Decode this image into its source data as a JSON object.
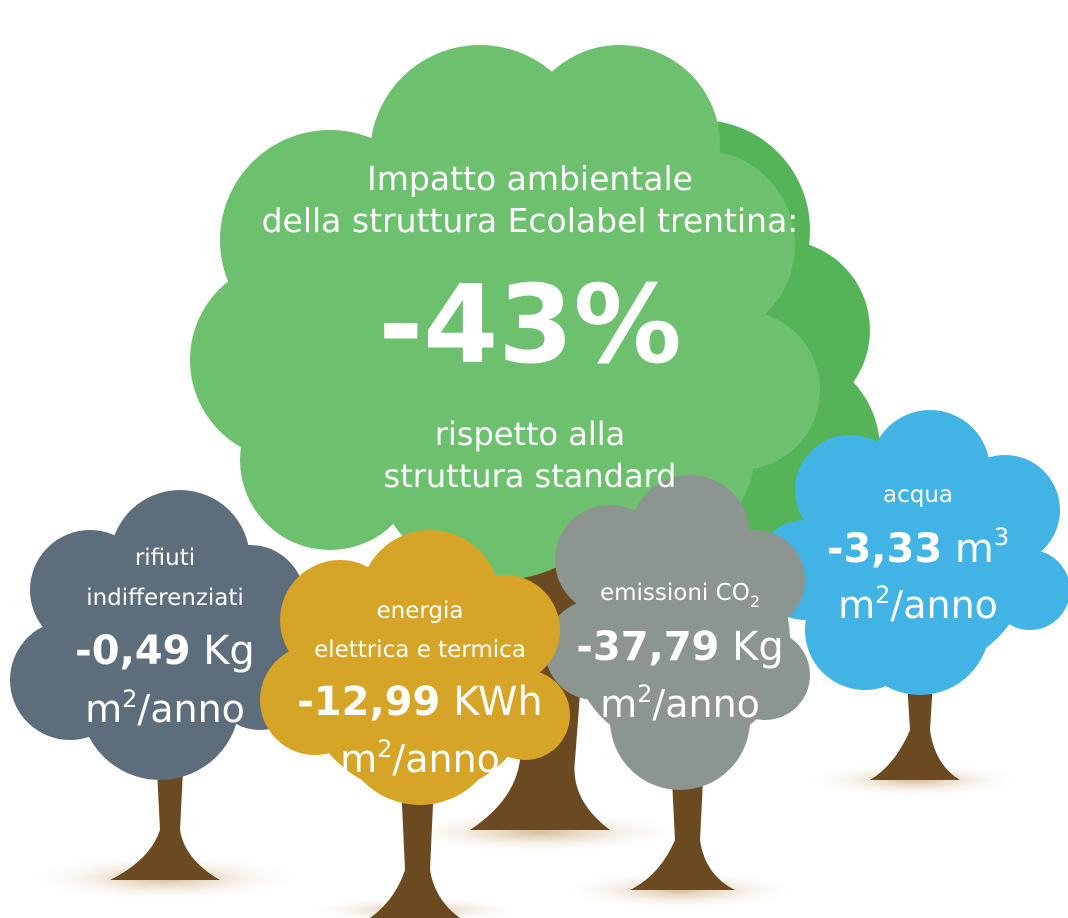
{
  "main": {
    "line1": "Impatto ambientale",
    "line2": "della struttura Ecolabel trentina:",
    "value": "-43%",
    "sub1": "rispetto alla",
    "sub2": "struttura standard"
  },
  "trees": [
    {
      "label1": "rifiuti",
      "label2": "indifferenziati",
      "value": "-0,49",
      "unit": "Kg",
      "per": {
        "base": "m",
        "exp": "2",
        "rest": "/anno"
      }
    },
    {
      "label1": "energia",
      "label2": "elettrica e termica",
      "value": "-12,99",
      "unit": "KWh",
      "per": {
        "base": "m",
        "exp": "2",
        "rest": "/anno"
      }
    },
    {
      "label1": "emissioni CO",
      "label1_sub": "2",
      "value": "-37,79",
      "unit": "Kg",
      "per": {
        "base": "m",
        "exp": "2",
        "rest": "/anno"
      }
    },
    {
      "label1": "acqua",
      "value": "-3,33",
      "unit": "m",
      "unit_exp": "3",
      "per": {
        "base": "m",
        "exp": "2",
        "rest": "/anno"
      }
    }
  ]
}
